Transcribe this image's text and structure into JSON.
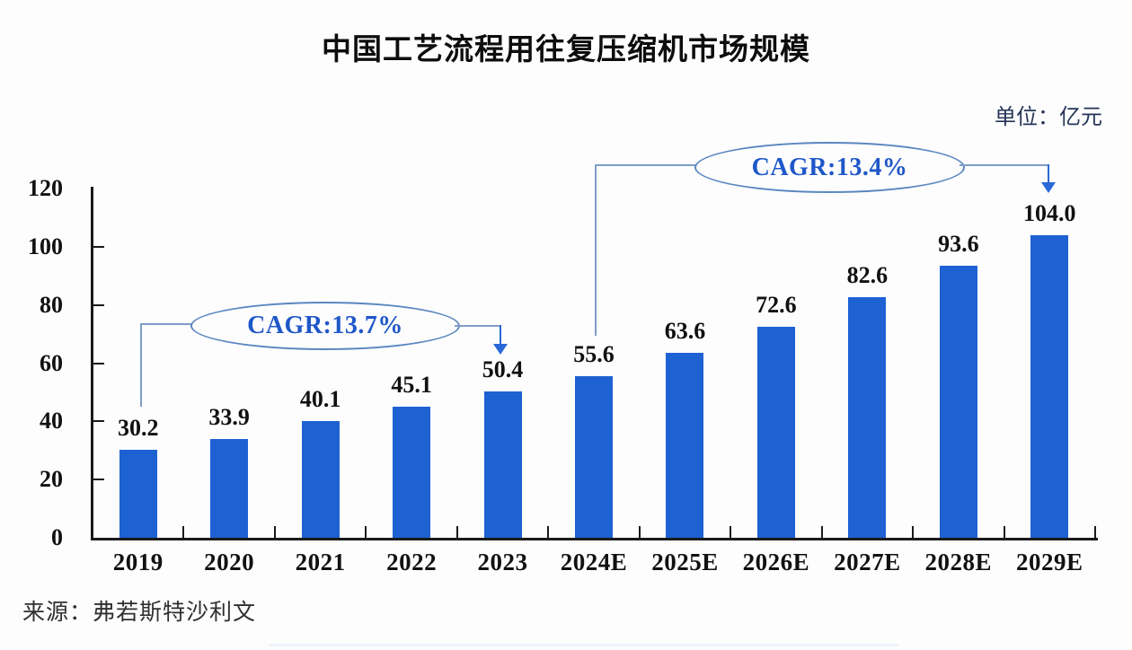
{
  "title": "中国工艺流程用往复压缩机市场规模",
  "unit_label": "单位：亿元",
  "source": "来源：弗若斯特沙利文",
  "colors": {
    "bar": "#1d61d3",
    "axis": "#1a1a1a",
    "cagr_text": "#1f57c8",
    "ellipse_border": "#5b87c0",
    "connector": "#7f9dc6",
    "arrow": "#2a68d8",
    "unit_text": "#253455"
  },
  "chart_data": {
    "type": "bar",
    "title": "中国工艺流程用往复压缩机市场规模",
    "unit": "亿元",
    "categories": [
      "2019",
      "2020",
      "2021",
      "2022",
      "2023",
      "2024E",
      "2025E",
      "2026E",
      "2027E",
      "2028E",
      "2029E"
    ],
    "values": [
      30.2,
      33.9,
      40.1,
      45.1,
      50.4,
      55.6,
      63.6,
      72.6,
      82.6,
      93.6,
      104.0
    ],
    "ylim": [
      0,
      120
    ],
    "yticks": [
      0,
      20,
      40,
      60,
      80,
      100,
      120
    ],
    "grid": false,
    "legend": "none",
    "annotations": [
      {
        "label": "CAGR:13.7%",
        "from": "2019",
        "to": "2023"
      },
      {
        "label": "CAGR:13.4%",
        "from": "2024E",
        "to": "2029E"
      }
    ],
    "source": "弗若斯特沙利文"
  }
}
